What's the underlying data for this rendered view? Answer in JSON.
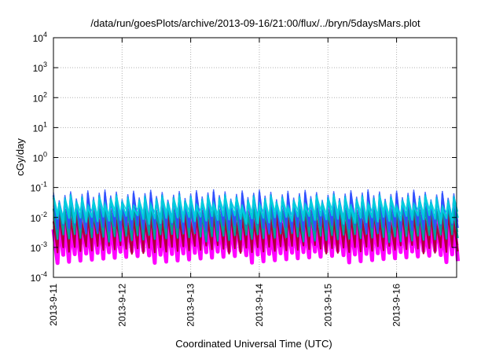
{
  "chart_data": {
    "type": "line",
    "title": "/data/run/goesPlots/archive/2013-09-16/21:00/flux/../bryn/5daysMars.plot",
    "xlabel": "Coordinated Universal Time (UTC)",
    "ylabel": "cGy/day",
    "yscale": "log",
    "ylim": [
      0.0001,
      10000
    ],
    "xlim": [
      "2013-09-11",
      "2013-09-16T21:00"
    ],
    "xlim_days": [
      0,
      5.875
    ],
    "grid": true,
    "legend": "none",
    "ytick_exponents": [
      -4,
      -3,
      -2,
      -1,
      0,
      1,
      2,
      3,
      4
    ],
    "ytick_base": "10",
    "xtick_labels": [
      "2013-9-11",
      "2013-9-12",
      "2013-9-13",
      "2013-9-14",
      "2013-9-15",
      "2013-9-16"
    ],
    "cycles_per_day": 12,
    "series": [
      {
        "color": "#ff00ff",
        "peak_range": [
          0.004,
          0.012
        ],
        "trough_range": [
          0.0003,
          0.0008
        ]
      },
      {
        "color": "#b0003a",
        "peak_range": [
          0.005,
          0.016
        ],
        "trough_range": [
          0.0006,
          0.0012
        ]
      },
      {
        "color": "#00a0a0",
        "peak_range": [
          0.012,
          0.03
        ],
        "trough_range": [
          0.0015,
          0.003
        ]
      },
      {
        "color": "#3050ff",
        "peak_range": [
          0.03,
          0.07
        ],
        "trough_range": [
          0.003,
          0.006
        ]
      },
      {
        "color": "#00ccdd",
        "peak_range": [
          0.02,
          0.05
        ],
        "trough_range": [
          0.006,
          0.012
        ]
      }
    ]
  }
}
